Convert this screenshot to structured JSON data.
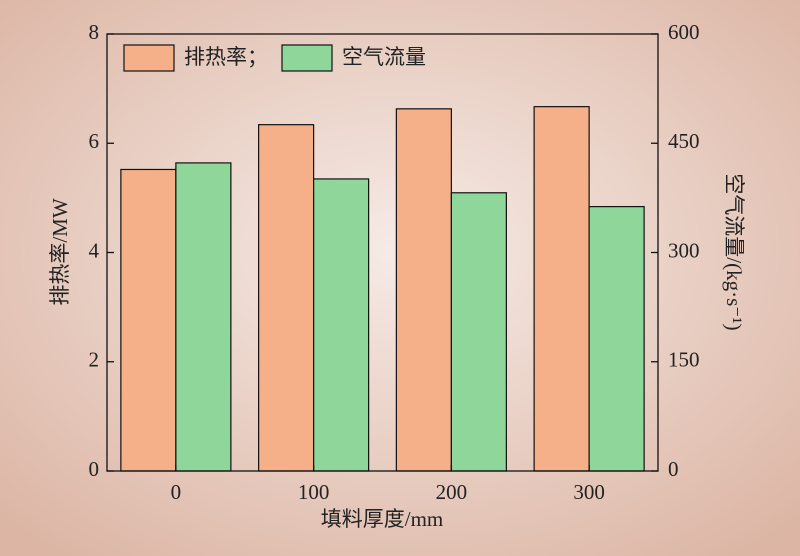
{
  "chart_data": {
    "type": "bar",
    "categories": [
      "0",
      "100",
      "200",
      "300"
    ],
    "xlabel": "填料厚度/mm",
    "ylabel": "排热率/MW",
    "y2label": "空气流量/(kg·s⁻¹)",
    "series": [
      {
        "name": "排热率；",
        "color": "#f5b08a",
        "values": [
          5.52,
          6.34,
          6.63,
          6.67
        ]
      },
      {
        "name": "空气流量",
        "color": "#8fd69a",
        "axis": "y2",
        "values": [
          423,
          401,
          382,
          363
        ]
      }
    ],
    "ylim": [
      0,
      8
    ],
    "yticks": [
      0,
      2,
      4,
      6,
      8
    ],
    "y2lim": [
      0,
      600
    ],
    "y2ticks": [
      0,
      150,
      300,
      450,
      600
    ],
    "legend": "upper left"
  }
}
